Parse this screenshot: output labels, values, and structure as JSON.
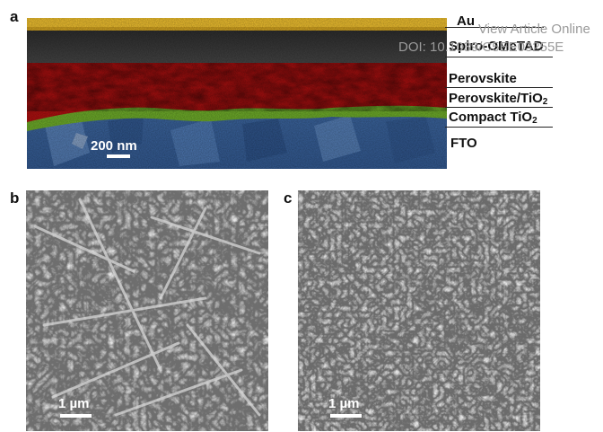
{
  "panel_labels": {
    "a": "a",
    "b": "b",
    "c": "c"
  },
  "panel_a": {
    "scale_bar": "200 nm",
    "layers": {
      "au": "Au",
      "spiro": "Spiro-OMeTAD",
      "perovskite": "Perovskite",
      "perovskite_tio2_prefix": "Perovskite/TiO",
      "perovskite_tio2_sub": "2",
      "compact_prefix": "Compact TiO",
      "compact_sub": "2",
      "fto": "FTO"
    },
    "layer_colors": {
      "au": "#f2c230",
      "spiro": "#3a3a3a",
      "perovskite": "#b01010",
      "interface": "#6fae2a",
      "fto": "#3f6aa6"
    }
  },
  "panel_b": {
    "scale_bar": "1 µm"
  },
  "panel_c": {
    "scale_bar": "1 µm"
  },
  "watermark": {
    "line1": "View Article Online",
    "line2": "DOI: 10.1039/C5EE03255E"
  }
}
